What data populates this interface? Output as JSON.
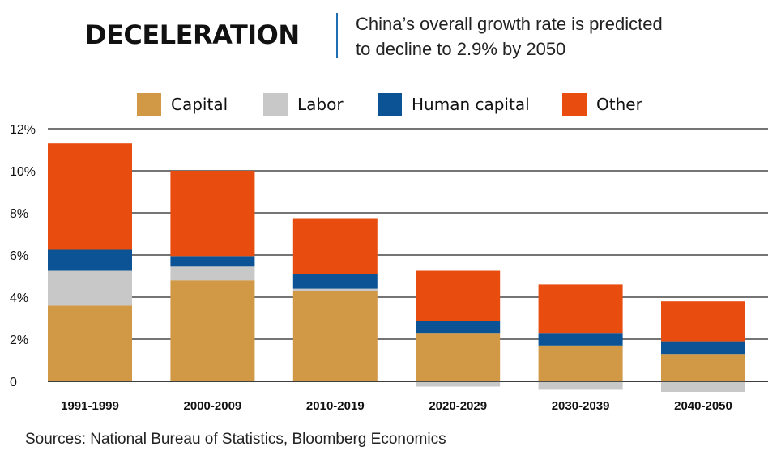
{
  "header": {
    "title": "DECELERATION",
    "subtitle_line1": "China’s overall growth rate is predicted",
    "subtitle_line2": "to decline to 2.9% by 2050"
  },
  "source": "Sources: National Bureau of Statistics, Bloomberg Economics",
  "colors": {
    "capital": "#d19845",
    "labor": "#c8c8c8",
    "human_capital": "#0b5394",
    "other": "#e84c0e",
    "divider": "#1f6fb2"
  },
  "chart_data": {
    "type": "bar",
    "stacked": true,
    "title": "DECELERATION",
    "subtitle": "China’s overall growth rate is predicted to decline to 2.9% by 2050",
    "categories": [
      "1991-1999",
      "2000-2009",
      "2010-2019",
      "2020-2029",
      "2030-2039",
      "2040-2050"
    ],
    "series": [
      {
        "name": "Capital",
        "color": "#d19845",
        "values": [
          3.6,
          4.8,
          4.3,
          2.3,
          1.7,
          1.3
        ]
      },
      {
        "name": "Labor",
        "color": "#c8c8c8",
        "values": [
          1.65,
          0.65,
          0.1,
          -0.25,
          -0.4,
          -0.5
        ]
      },
      {
        "name": "Human capital",
        "color": "#0b5394",
        "values": [
          1.0,
          0.5,
          0.7,
          0.55,
          0.6,
          0.6
        ]
      },
      {
        "name": "Other",
        "color": "#e84c0e",
        "values": [
          5.05,
          4.05,
          2.65,
          2.4,
          2.3,
          1.9
        ]
      }
    ],
    "yticks": [
      "0",
      "2%",
      "4%",
      "6%",
      "8%",
      "10%",
      "12%"
    ],
    "ylim": [
      -0.5,
      12
    ],
    "grid": true,
    "legend_position": "top"
  }
}
